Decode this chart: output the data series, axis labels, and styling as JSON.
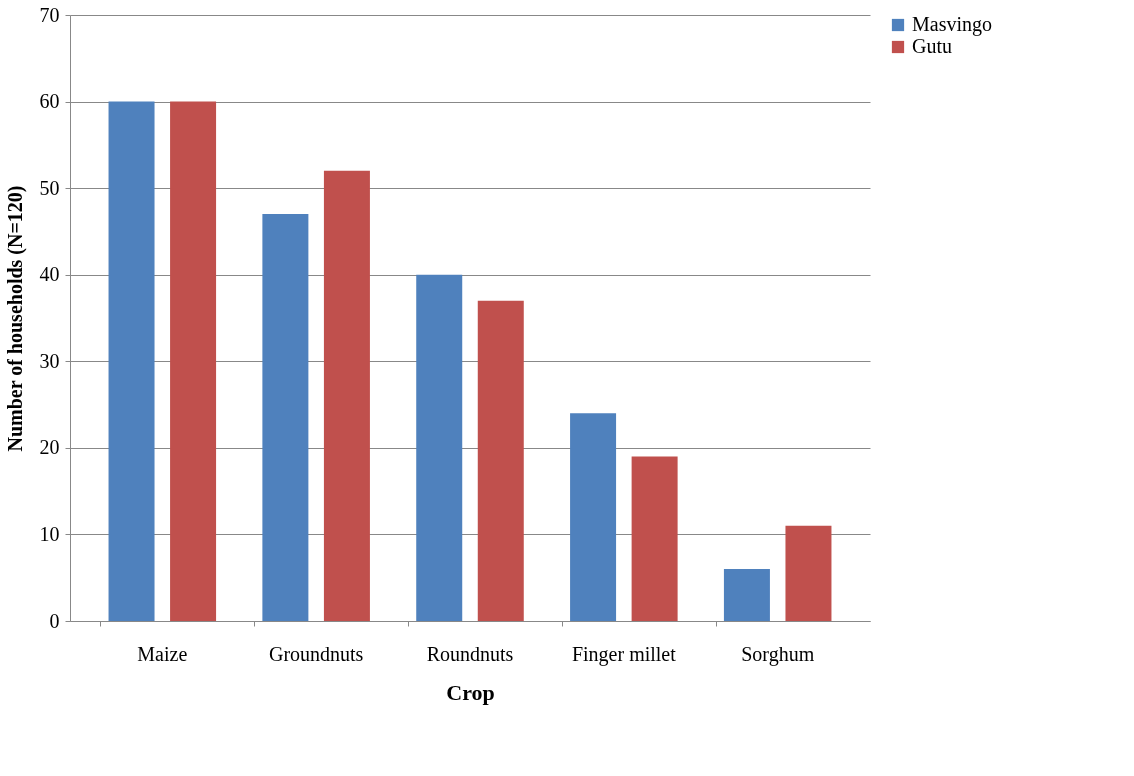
{
  "chart_data": {
    "type": "bar",
    "xlabel": "Crop",
    "ylabel": "Number of households (N=120)",
    "categories": [
      "Maize",
      "Groundnuts",
      "Roundnuts",
      "Finger millet",
      "Sorghum"
    ],
    "series": [
      {
        "name": "Masvingo",
        "color": "#4f81bd",
        "values": [
          60,
          47,
          40,
          24,
          6
        ]
      },
      {
        "name": "Gutu",
        "color": "#c0504d",
        "values": [
          60,
          52,
          37,
          19,
          11
        ]
      }
    ],
    "ylim": [
      0,
      70
    ],
    "yticks": [
      0,
      10,
      20,
      30,
      40,
      50,
      60,
      70
    ],
    "grid": "y",
    "legend": "right"
  }
}
